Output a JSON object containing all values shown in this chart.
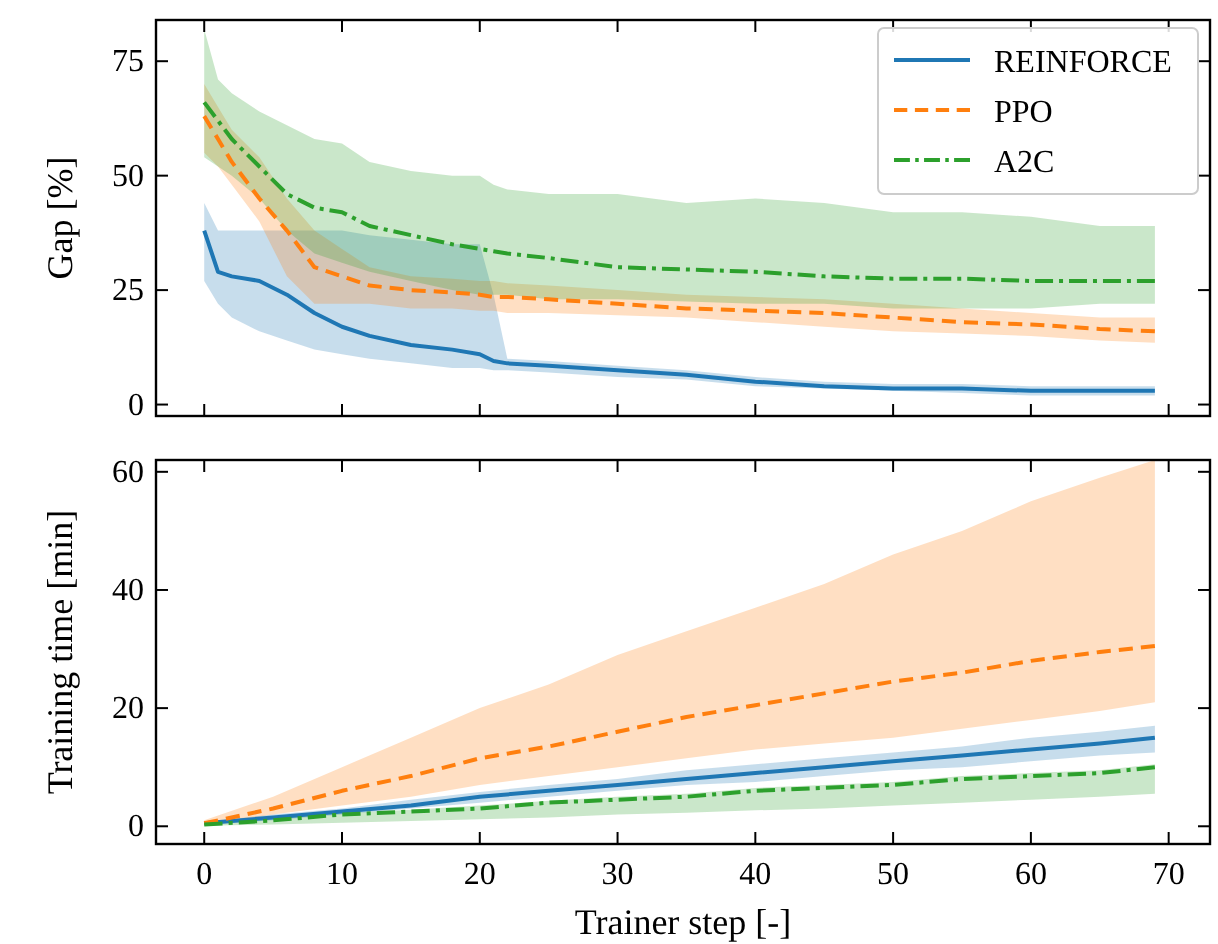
{
  "chart_data": [
    {
      "type": "line",
      "ylabel": "Gap [%]",
      "x": [
        0,
        1,
        2,
        4,
        6,
        8,
        10,
        12,
        15,
        18,
        20,
        21,
        22,
        25,
        30,
        35,
        40,
        45,
        50,
        55,
        60,
        65,
        69
      ],
      "xlim": [
        -3.5,
        73
      ],
      "xticks": [
        0,
        10,
        20,
        30,
        40,
        50,
        60,
        70
      ],
      "ylim": [
        -2.5,
        84
      ],
      "yticks": [
        0,
        25,
        50,
        75
      ],
      "tick_labels": "y",
      "legend": "top right",
      "grid": false,
      "series": [
        {
          "name": "REINFORCE",
          "color": "#1f77b4",
          "line_style": "solid",
          "values": [
            38,
            29,
            28,
            27,
            24,
            20,
            17,
            15,
            13,
            12,
            11,
            9.5,
            9,
            8.5,
            7.5,
            6.5,
            5,
            4,
            3.5,
            3.5,
            3,
            3,
            3
          ],
          "upper": [
            44,
            38,
            38,
            38,
            38,
            38,
            38,
            37,
            36,
            35,
            35,
            24,
            10,
            9.5,
            8.5,
            7.5,
            6,
            5,
            4.5,
            4.5,
            4,
            4,
            4
          ],
          "lower": [
            27,
            22,
            19,
            16,
            14,
            12,
            11,
            10,
            9,
            8,
            8,
            7.5,
            7.5,
            7,
            6,
            5.5,
            4,
            3.5,
            3,
            2.5,
            2,
            2,
            2
          ]
        },
        {
          "name": "PPO",
          "color": "#ff7f0e",
          "line_style": "dashed",
          "values": [
            63,
            58,
            53,
            45,
            38,
            30,
            28,
            26,
            25,
            24.5,
            24,
            23.5,
            23.5,
            23,
            22,
            21,
            20.5,
            20,
            19,
            18,
            17.5,
            16.5,
            16
          ],
          "upper": [
            70,
            65,
            60,
            54,
            45,
            38,
            34,
            30,
            28,
            27.5,
            27,
            27,
            26.5,
            26,
            25,
            24,
            23.5,
            23,
            22,
            21,
            20,
            19,
            19
          ],
          "lower": [
            55,
            52,
            48,
            40,
            28,
            22,
            22,
            22,
            21,
            21,
            20.5,
            20.5,
            20,
            20,
            19.5,
            19,
            18,
            17,
            16,
            15.5,
            15,
            14,
            13.5
          ]
        },
        {
          "name": "A2C",
          "color": "#2ca02c",
          "line_style": "dashdot",
          "values": [
            66,
            62,
            58,
            52,
            46,
            43,
            42,
            39,
            37,
            35,
            34,
            33.5,
            33,
            32,
            30,
            29.5,
            29,
            28,
            27.5,
            27.5,
            27,
            27,
            27
          ],
          "upper": [
            82,
            71,
            68,
            64,
            61,
            58,
            57,
            53,
            51,
            50,
            50,
            48,
            47,
            46,
            46,
            44,
            45,
            44,
            42,
            42,
            41,
            39,
            39
          ],
          "lower": [
            54,
            52,
            50,
            45,
            38,
            33,
            31,
            29,
            27,
            25,
            24,
            24,
            24,
            23,
            23,
            22.5,
            22,
            22,
            21,
            21,
            21,
            22,
            22
          ]
        }
      ]
    },
    {
      "type": "line",
      "xlabel": "Trainer step [-]",
      "ylabel": "Training time [min]",
      "x": [
        0,
        5,
        10,
        15,
        20,
        25,
        30,
        35,
        40,
        45,
        50,
        55,
        60,
        65,
        69
      ],
      "xlim": [
        -3.5,
        73
      ],
      "xticks": [
        0,
        10,
        20,
        30,
        40,
        50,
        60,
        70
      ],
      "ylim": [
        -3,
        62
      ],
      "yticks": [
        0,
        20,
        40,
        60
      ],
      "grid": false,
      "series": [
        {
          "color": "#1f77b4",
          "line_style": "solid",
          "values": [
            0.5,
            1.5,
            2.5,
            3.5,
            5,
            6,
            7,
            8,
            9,
            10,
            11,
            12,
            13,
            14,
            15
          ],
          "upper": [
            0.7,
            2,
            3,
            4.5,
            5.8,
            7,
            8,
            9.5,
            10.5,
            11.5,
            12.5,
            13.5,
            15,
            16,
            17
          ],
          "lower": [
            0.3,
            1,
            2,
            3,
            4,
            5,
            6,
            7,
            7.5,
            8.5,
            9.5,
            10,
            11,
            12,
            12.5
          ]
        },
        {
          "color": "#ff7f0e",
          "line_style": "dashed",
          "values": [
            0.5,
            3,
            6,
            8.5,
            11.5,
            13.5,
            16,
            18.5,
            20.5,
            22.5,
            24.5,
            26,
            28,
            29.5,
            30.5
          ],
          "upper": [
            1,
            5,
            10,
            15,
            20,
            24,
            29,
            33,
            37,
            41,
            46,
            50,
            55,
            59,
            62
          ],
          "lower": [
            0.3,
            2,
            3.5,
            5,
            7,
            8.5,
            10,
            11.5,
            13,
            14,
            15,
            16.5,
            18,
            19.5,
            21
          ]
        },
        {
          "color": "#2ca02c",
          "line_style": "dashdot",
          "values": [
            0.3,
            1,
            2,
            2.5,
            3,
            4,
            4.5,
            5,
            6,
            6.5,
            7,
            8,
            8.5,
            9,
            10
          ],
          "upper": [
            0.5,
            1.3,
            2.2,
            2.8,
            3.5,
            4.3,
            5,
            5.5,
            6.5,
            7,
            7.5,
            8.5,
            9,
            9.5,
            10.5
          ],
          "lower": [
            0.1,
            0.3,
            0.6,
            0.9,
            1.2,
            1.5,
            2,
            2.3,
            2.7,
            3,
            3.5,
            4,
            4.5,
            5,
            5.5
          ]
        }
      ]
    }
  ]
}
